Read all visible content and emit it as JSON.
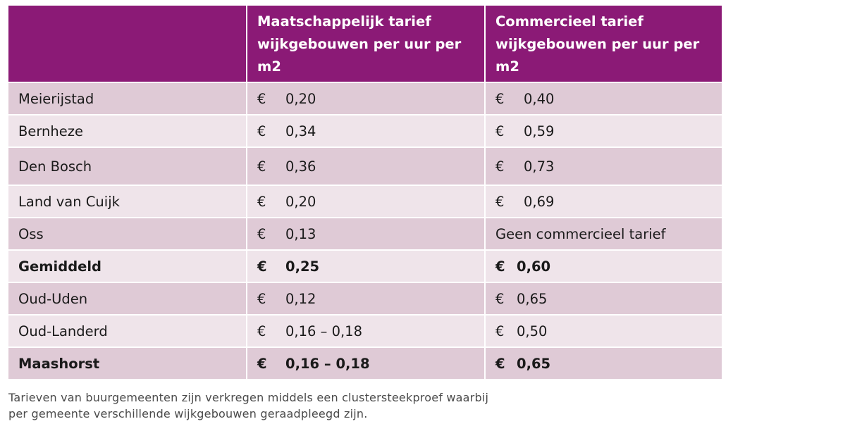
{
  "table": {
    "headers": [
      "",
      "Maatschappelijk tarief wijkgebouwen per uur per m2",
      "Commercieel tarief wijkgebouwen per uur per m2"
    ],
    "currency_symbol": "€",
    "rows": [
      {
        "name": "Meierijstad",
        "maatschappelijk": "0,20",
        "commercieel": "0,40",
        "bold": false
      },
      {
        "name": "Bernheze",
        "maatschappelijk": "0,34",
        "commercieel": "0,59",
        "bold": false
      },
      {
        "name": "Den Bosch",
        "maatschappelijk": "0,36",
        "commercieel": "0,73",
        "bold": false
      },
      {
        "name": "Land van Cuijk",
        "maatschappelijk": "0,20",
        "commercieel": "0,69",
        "bold": false
      },
      {
        "name": "Oss",
        "maatschappelijk": "0,13",
        "commercieel": "Geen commercieel tarief",
        "bold": false
      },
      {
        "name": "Gemiddeld",
        "maatschappelijk": "0,25",
        "commercieel": "0,60",
        "bold": true
      },
      {
        "name": "Oud-Uden",
        "maatschappelijk": "0,12",
        "commercieel": "0,65",
        "bold": false
      },
      {
        "name": "Oud-Landerd",
        "maatschappelijk": "0,16 – 0,18",
        "commercieel": "0,50",
        "bold": false
      },
      {
        "name": "Maashorst",
        "maatschappelijk": "0,16 – 0,18",
        "commercieel": "0,65",
        "bold": true
      }
    ]
  },
  "footnote": {
    "line1": "Tarieven van buurgemeenten zijn verkregen middels een clustersteekproef waarbij",
    "line2": "per gemeente verschillende wijkgebouwen geraadpleegd zijn."
  }
}
